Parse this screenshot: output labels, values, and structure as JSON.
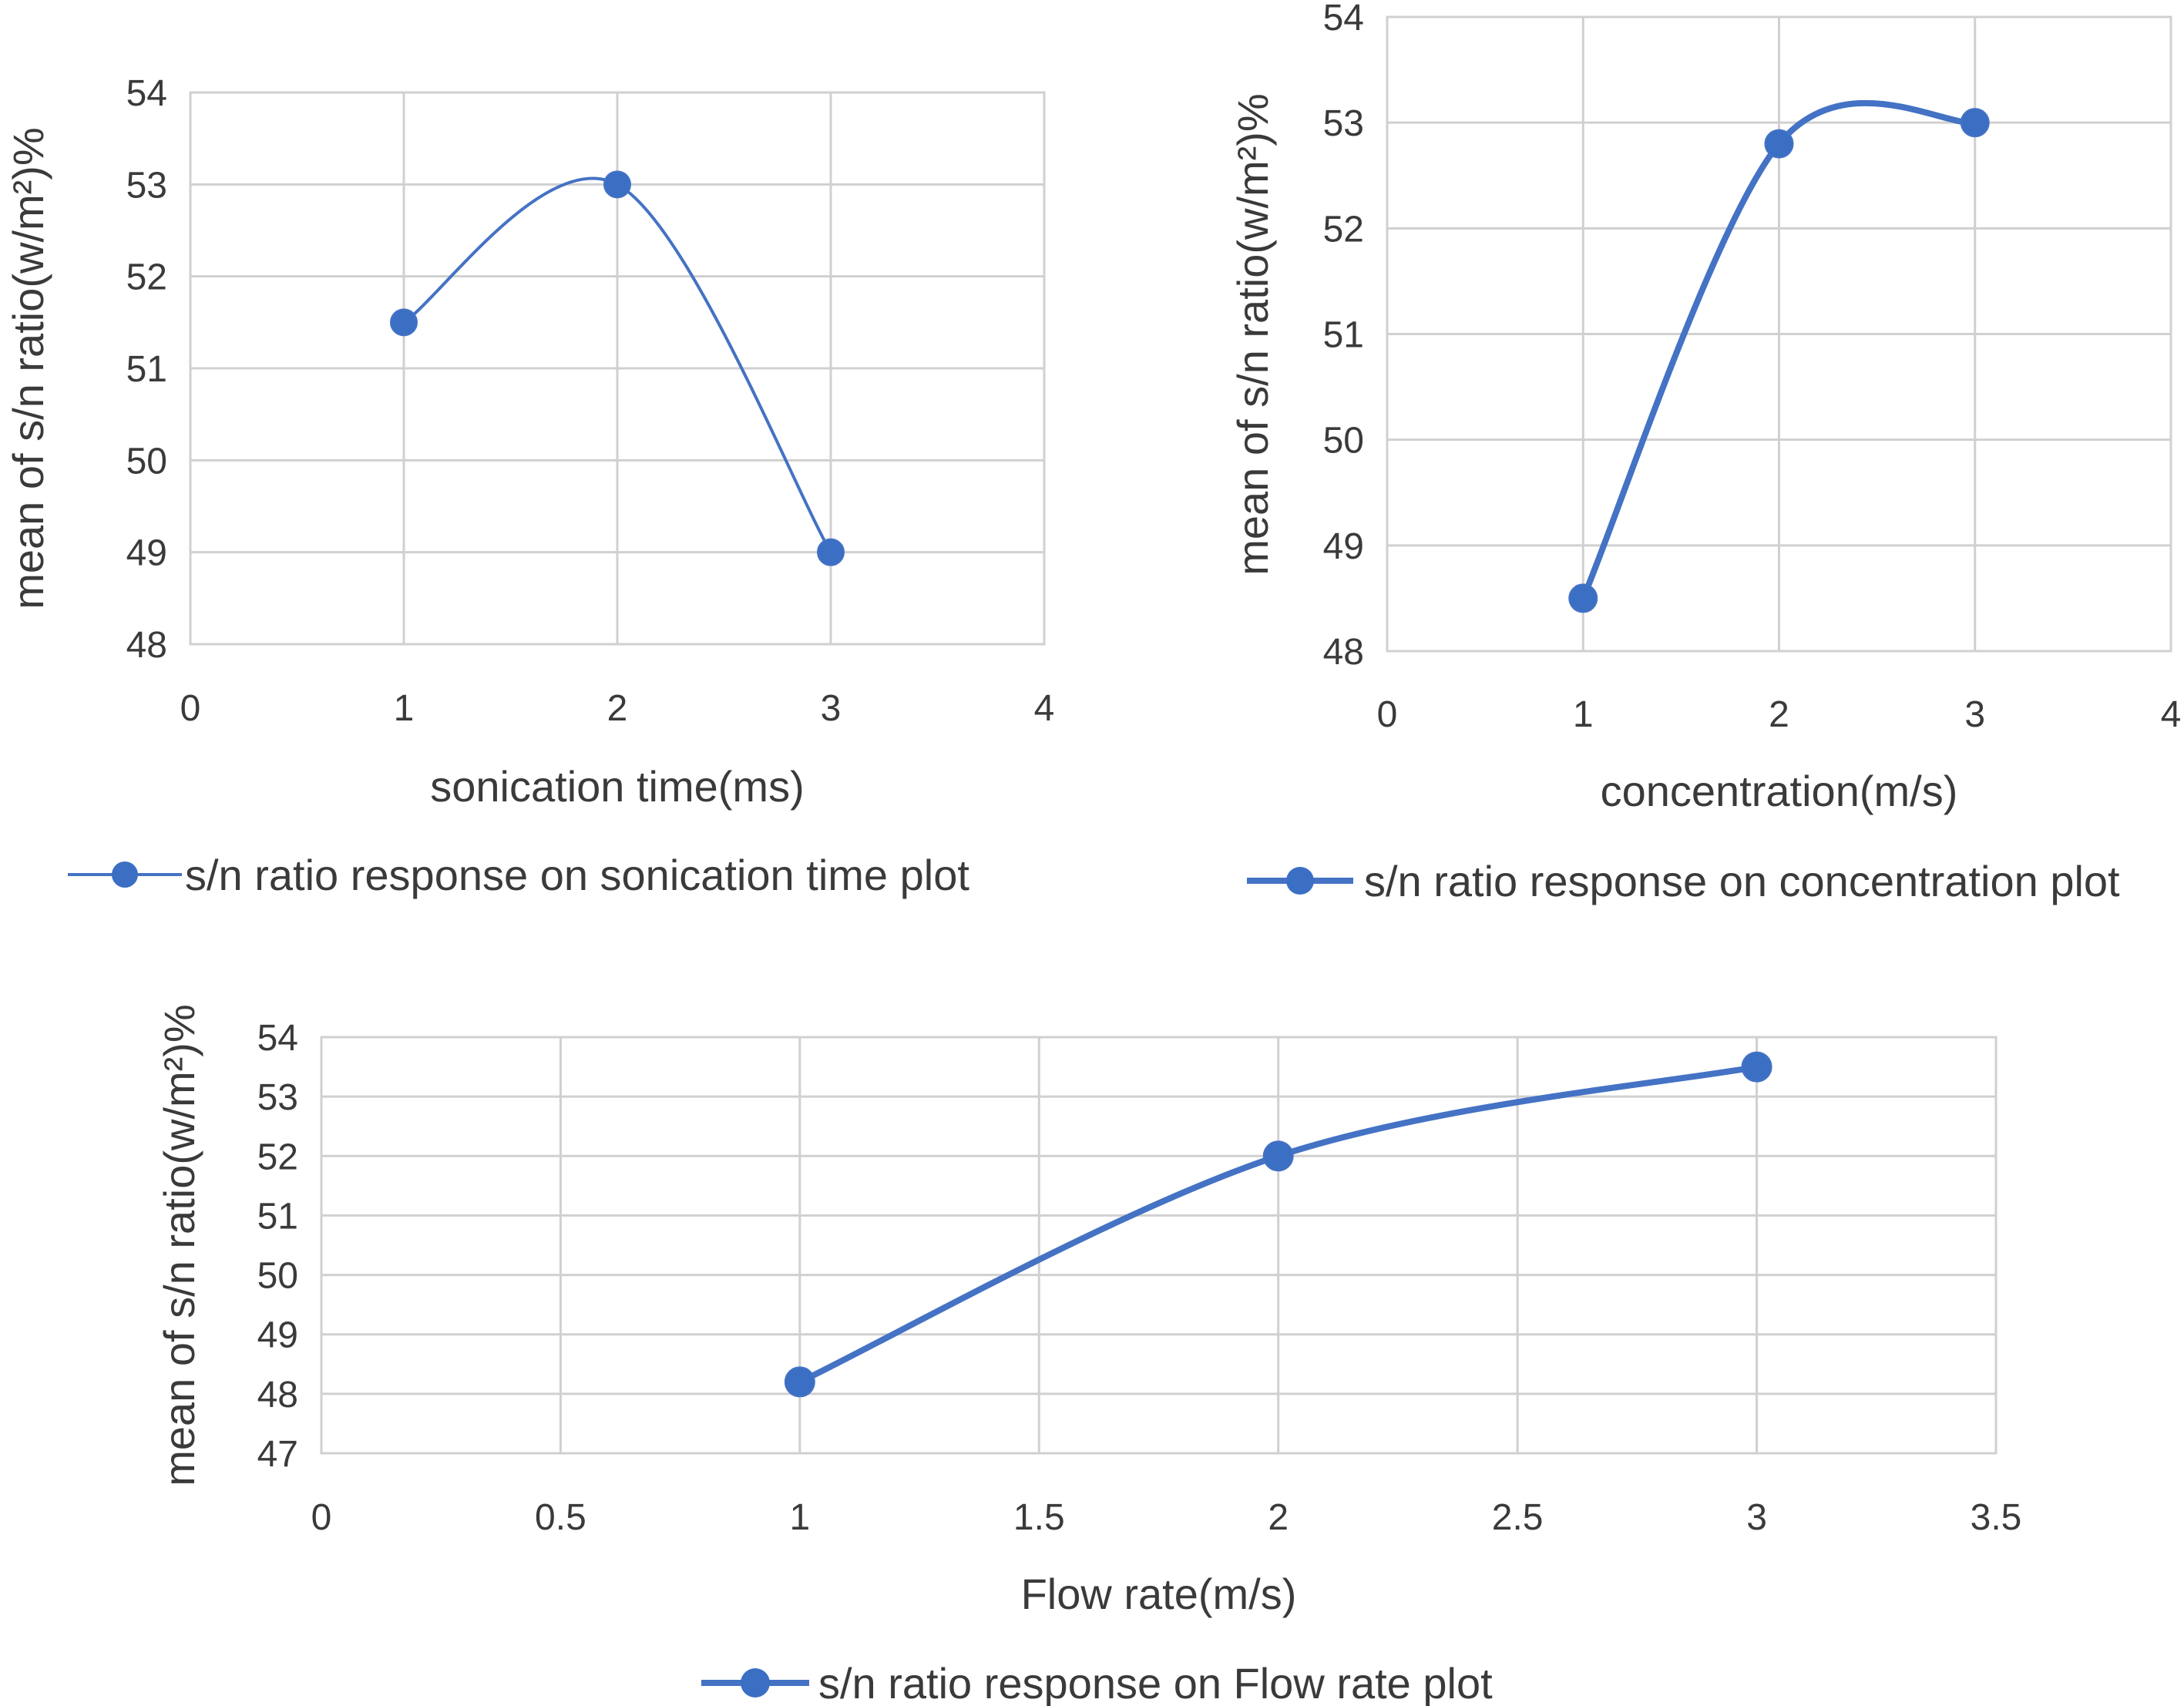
{
  "chart_data": [
    {
      "type": "scatter",
      "title": "",
      "xlabel": "sonication time(ms)",
      "ylabel": "mean of s/n ratio(w/m²)%",
      "xlim": [
        0,
        4
      ],
      "ylim": [
        48,
        54
      ],
      "xticks": [
        "0",
        "1",
        "2",
        "3",
        "4"
      ],
      "yticks": [
        "48",
        "49",
        "50",
        "51",
        "52",
        "53",
        "54"
      ],
      "grid": true,
      "smooth": true,
      "legend_position": "bottom",
      "series": [
        {
          "name": "s/n ratio response on sonication time plot",
          "x": [
            1,
            2,
            3
          ],
          "y": [
            51.5,
            53,
            49
          ]
        }
      ]
    },
    {
      "type": "scatter",
      "title": "",
      "xlabel": "concentration(m/s)",
      "ylabel": "mean of s/n ratio(w/m²)%",
      "xlim": [
        0,
        4
      ],
      "ylim": [
        48,
        54
      ],
      "xticks": [
        "0",
        "1",
        "2",
        "3",
        "4"
      ],
      "yticks": [
        "48",
        "49",
        "50",
        "51",
        "52",
        "53",
        "54"
      ],
      "grid": true,
      "smooth": true,
      "legend_position": "bottom",
      "series": [
        {
          "name": "s/n ratio response on concentration plot",
          "x": [
            1,
            2,
            3
          ],
          "y": [
            48.5,
            52.8,
            53
          ]
        }
      ]
    },
    {
      "type": "scatter",
      "title": "",
      "xlabel": "Flow rate(m/s)",
      "ylabel": "mean of s/n ratio(w/m²)%",
      "xlim": [
        0,
        3.5
      ],
      "ylim": [
        47,
        54
      ],
      "xticks": [
        "0",
        "0.5",
        "1",
        "1.5",
        "2",
        "2.5",
        "3",
        "3.5"
      ],
      "yticks": [
        "47",
        "48",
        "49",
        "50",
        "51",
        "52",
        "53",
        "54"
      ],
      "grid": true,
      "smooth": true,
      "legend_position": "bottom",
      "series": [
        {
          "name": "s/n ratio response on Flow rate plot",
          "x": [
            1,
            2,
            3
          ],
          "y": [
            48.2,
            52,
            53.5
          ]
        }
      ]
    }
  ],
  "colors": {
    "series": "#4472c4",
    "marker": "#3b6fc4",
    "grid": "#d0d0d0",
    "text": "#3a3a3a"
  }
}
